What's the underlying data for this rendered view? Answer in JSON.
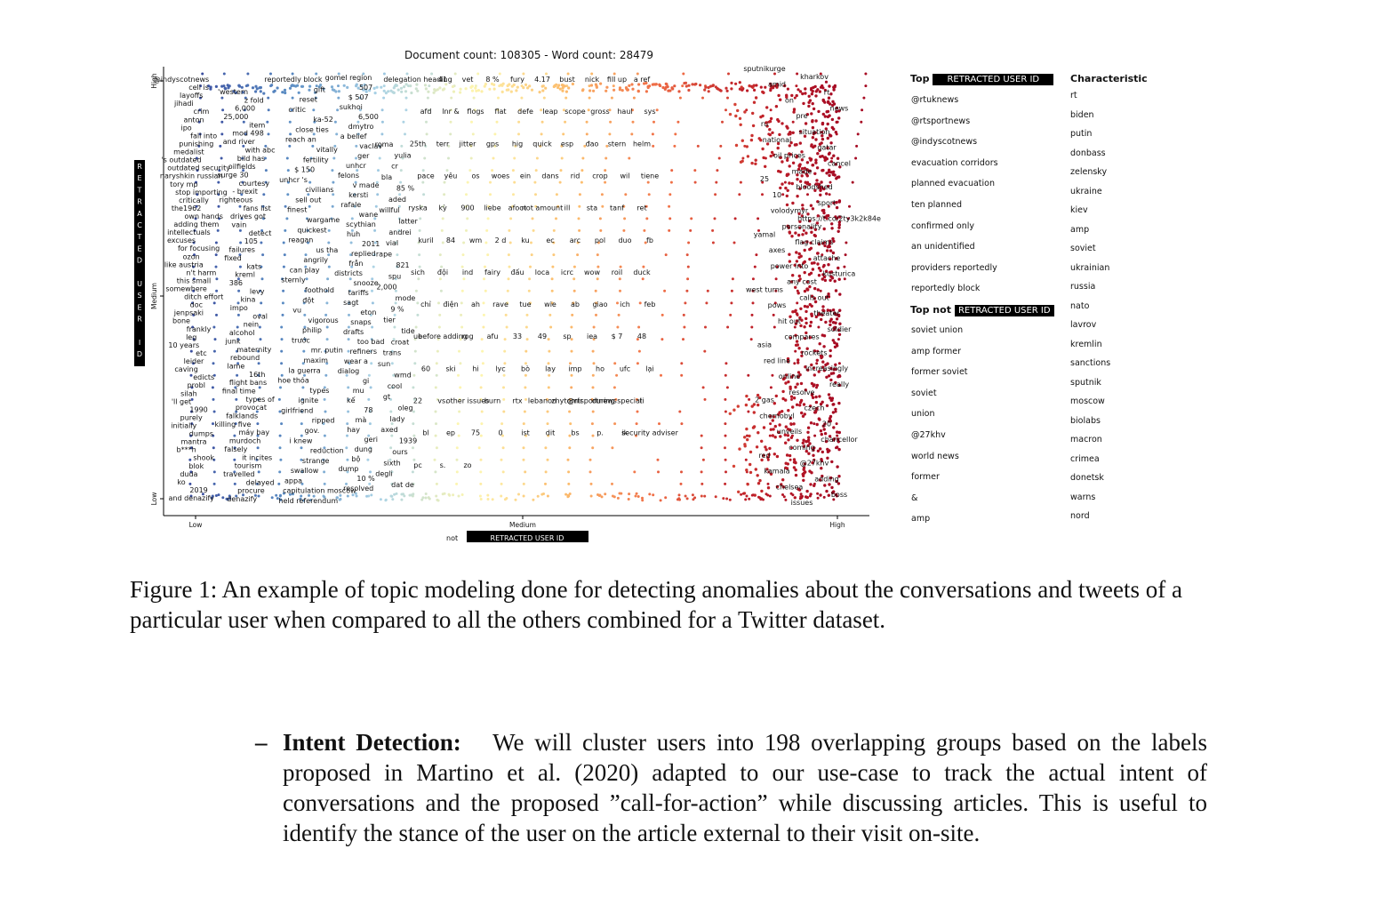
{
  "chart_data": {
    "type": "scatter",
    "title": "Document count: 108305 - Word count: 28479",
    "xlabel_prefix": "not",
    "xlabel_redacted": "RETRACTED USER ID",
    "ylabel_redacted": "RETRACTED USER ID",
    "x_ticks": [
      "Low",
      "Medium",
      "High"
    ],
    "y_ticks": [
      "Low",
      "Medium",
      "High"
    ],
    "colormap": "RdYlBu (blue = more frequent for user, red = more frequent for others)",
    "colors": {
      "user": "#3b4fa0",
      "mid": "#fdf6b0",
      "others": "#b5162a"
    }
  },
  "plot_labels": {
    "left_cluster": [
      "@indyscotnews",
      "cell is",
      "layoffs",
      "jihadi",
      "crim",
      "anton",
      "ipo",
      "fall into",
      "punishing",
      "medalist",
      "'s outdated",
      "outdated security",
      "naryshkin russian",
      "tory mp",
      "stop importing",
      "critically",
      "the1962",
      "own hands",
      "adding them",
      "intellectuals",
      "excuses",
      "for focusing",
      "ozon",
      "like austria",
      "n't harm",
      "this small",
      "somewhere",
      "ditch effort",
      "doc",
      "jenpsaki",
      "bone",
      "frankly",
      "leg",
      "10 years",
      "etc",
      "leider",
      "caving",
      "edicts",
      "probl",
      "silah",
      "'ll get",
      "1990",
      "purely",
      "initially",
      "dumps",
      "mantra",
      "b***h",
      "shook",
      "blok",
      "duda",
      "ko",
      "2019",
      "and denazify"
    ],
    "second_col": [
      "'western",
      "z fold",
      "6,000",
      "25,000",
      "item",
      "mod 498",
      "and river",
      "with abc",
      "bild has",
      "oilfields",
      "surge 30",
      "courtesy",
      "- brexit",
      "righteous",
      "fans list",
      "drives got",
      "vain",
      "detect",
      "105",
      "failures",
      "fixed",
      "kats",
      "kreml",
      "386",
      "levy",
      "kina",
      "impo",
      "oval",
      "nein",
      "alcohol",
      "junk",
      "maternity",
      "rebound",
      "lame",
      "16th",
      "flight bans",
      "final time",
      "types of",
      "provocat",
      "falklands",
      "killing five",
      "máy bay",
      "murdoch",
      "falsely",
      "it incites",
      "tourism",
      "travelled",
      "delayed",
      "procure",
      "denazify"
    ],
    "third_col": [
      "reportedly block",
      "gift",
      "reset",
      "critic",
      "ka-52",
      "close ties",
      "reach an",
      "vitally",
      "fertility",
      "$ 150",
      "unhcr 's",
      "civilians",
      "sell out",
      "finest",
      "wargame",
      "quickest",
      "reagan",
      "us tha",
      "angrily",
      "can play",
      "sternly",
      "foothold",
      "đột",
      "vu",
      "vigorous",
      "philip",
      "trước",
      "mr. putin",
      "maxim",
      "la guerra",
      "hoe thỏa",
      "types",
      "ignite",
      "girlfriend",
      "ripped",
      "gov.",
      "i knew",
      "reduction",
      "strange",
      "swallow",
      "appa",
      "capitulation moscow",
      "held referendum"
    ],
    "fourth_col": [
      "gomel region",
      "507",
      "$ 507",
      "sukhoi",
      "6,500",
      "dmytro",
      "a belief",
      "vaclav",
      "ger",
      "unhcr",
      "felons",
      "v made",
      "kersti",
      "rafale",
      "wane",
      "scythian",
      "huh",
      "2011",
      "replied",
      "från",
      "districts",
      "snooze",
      "tariffs",
      "sagt",
      "eton",
      "snaps",
      "drafts",
      "too bad",
      "refiners",
      "wear a",
      "dialog",
      "gi",
      "mu",
      "kế",
      "78",
      "mà",
      "hay",
      "geri",
      "dung",
      "bộ",
      "dump",
      "10 %",
      "resolved"
    ],
    "fifth_col": [
      "roma",
      "yulia",
      "cr",
      "bla",
      "85 %",
      "aded",
      "willful",
      "latter",
      "andrei",
      "vial",
      "rape",
      "821",
      "spu",
      "2,000",
      "mode",
      "9 %",
      "tier",
      "tide",
      "croat",
      "trans",
      "sun",
      "wmd",
      "cool",
      "gt",
      "oleg",
      "lady",
      "axed",
      "1939",
      "ours",
      "sixth",
      "degli",
      "dat de"
    ],
    "middle_cols": [
      "delegation heading",
      "41",
      "vet",
      "8 %",
      "fury",
      "4.17",
      "bust",
      "nick",
      "fill up",
      "a ref",
      "afd",
      "lnr &",
      "flogs",
      "flat",
      "defe",
      "leap",
      "scope",
      "gross",
      "haul",
      "sys",
      "25th",
      "terr",
      "jitter",
      "gps",
      "hig",
      "quick",
      "esp",
      "đao",
      "stern",
      "helm",
      "pace",
      "yêu",
      "os",
      "woes",
      "ein",
      "dans",
      "rid",
      "crop",
      "wil",
      "tiene",
      "ryska",
      "kỳ",
      "900",
      "liebe",
      "afoot",
      "not amount",
      "ill",
      "sta",
      "tanf",
      "ret",
      "kuril",
      "84",
      "wm",
      "2 d",
      "ku",
      "ec",
      "arc",
      "pol",
      "duo",
      "fb",
      "sich",
      "đội",
      "ind",
      "fairy",
      "đấu",
      "loca",
      "icrc",
      "wow",
      "roil",
      "duck",
      "chỉ",
      "điện",
      "ah",
      "rave",
      "tue",
      "wie",
      "ab",
      "giao",
      "ich",
      "feb",
      "ue",
      "before adding",
      "rog",
      "afu",
      "33",
      "49",
      "sp",
      "iea",
      "$ 7",
      "48",
      "60",
      "ski",
      "hi",
      "lyc",
      "bò",
      "lay",
      "imp",
      "ho",
      "ufc",
      "lại",
      "22",
      "vs.",
      "other issues",
      "burn",
      "rtx",
      "lebanon",
      "zhytomir",
      "@rtsportnews",
      "during special",
      "ti",
      "bl",
      "ep",
      "75",
      "0",
      "ist",
      "dit",
      "bs",
      "p.",
      "ik",
      "security adviser",
      "pc",
      "s.",
      "zo"
    ],
    "right_cluster": [
      "sputnikurge",
      "kharkov",
      "amid",
      "rt",
      "on",
      "news",
      "pre",
      "ru",
      "situation",
      "national",
      "qatar",
      "oil prices",
      "cancel",
      "made",
      "25",
      "bloodshed",
      "10",
      "sport",
      "volodymyr",
      "https://t.co/2ty3k2k84e",
      "personality",
      "yamal",
      "flag claims",
      "axes",
      "attache",
      "power into",
      "kusturica",
      "any cost",
      "west turns",
      "calls out",
      "pows",
      "theater",
      "hit out",
      "soldier",
      "compares",
      "asia",
      "rockets",
      "red line",
      "increasingly",
      "online",
      "really",
      "resolve",
      "2 gas",
      "czech",
      "chernobyl",
      "20",
      "unveils",
      "chancellor",
      "coming",
      "red",
      "@27khv",
      "kamala",
      "adding",
      "chelsea",
      "boss",
      "issues"
    ]
  },
  "terms_panel": {
    "top_prefix": "Top",
    "top_redacted": "RETRACTED USER ID",
    "characteristic_header": "Characteristic",
    "top_terms": [
      "@rtuknews",
      "@rtsportnews",
      "@indyscotnews",
      "evacuation corridors",
      "planned evacuation",
      "ten planned",
      "confirmed only",
      "an unidentified",
      "providers reportedly",
      "reportedly block"
    ],
    "top_not_prefix": "Top not",
    "top_not_redacted": "RETRACTED USER ID",
    "top_not_terms": [
      "soviet union",
      "amp former",
      "former soviet",
      "soviet",
      "union",
      "@27khv",
      "world news",
      "former",
      "&",
      "amp"
    ],
    "characteristic_terms": [
      "rt",
      "biden",
      "putin",
      "donbass",
      "zelensky",
      "ukraine",
      "kiev",
      "amp",
      "soviet",
      "ukrainian",
      "russia",
      "nato",
      "lavrov",
      "kremlin",
      "sanctions",
      "sputnik",
      "moscow",
      "biolabs",
      "macron",
      "crimea",
      "donetsk",
      "warns",
      "nord"
    ]
  },
  "caption": "Figure 1: An example of topic modeling done for detecting anomalies about the conversations and tweets of a particular user when compared to all the others combined for a Twitter dataset.",
  "intent": {
    "dash": "–",
    "heading": "Intent Detection:",
    "text": "We will cluster users into 198 overlapping groups based on the labels proposed in Martino et al. (2020) adapted to our use-case to track the actual intent of conversations and the proposed ”call-for-action” while discussing articles. This is useful to identify the stance of the user on the article external to their visit on-site."
  }
}
